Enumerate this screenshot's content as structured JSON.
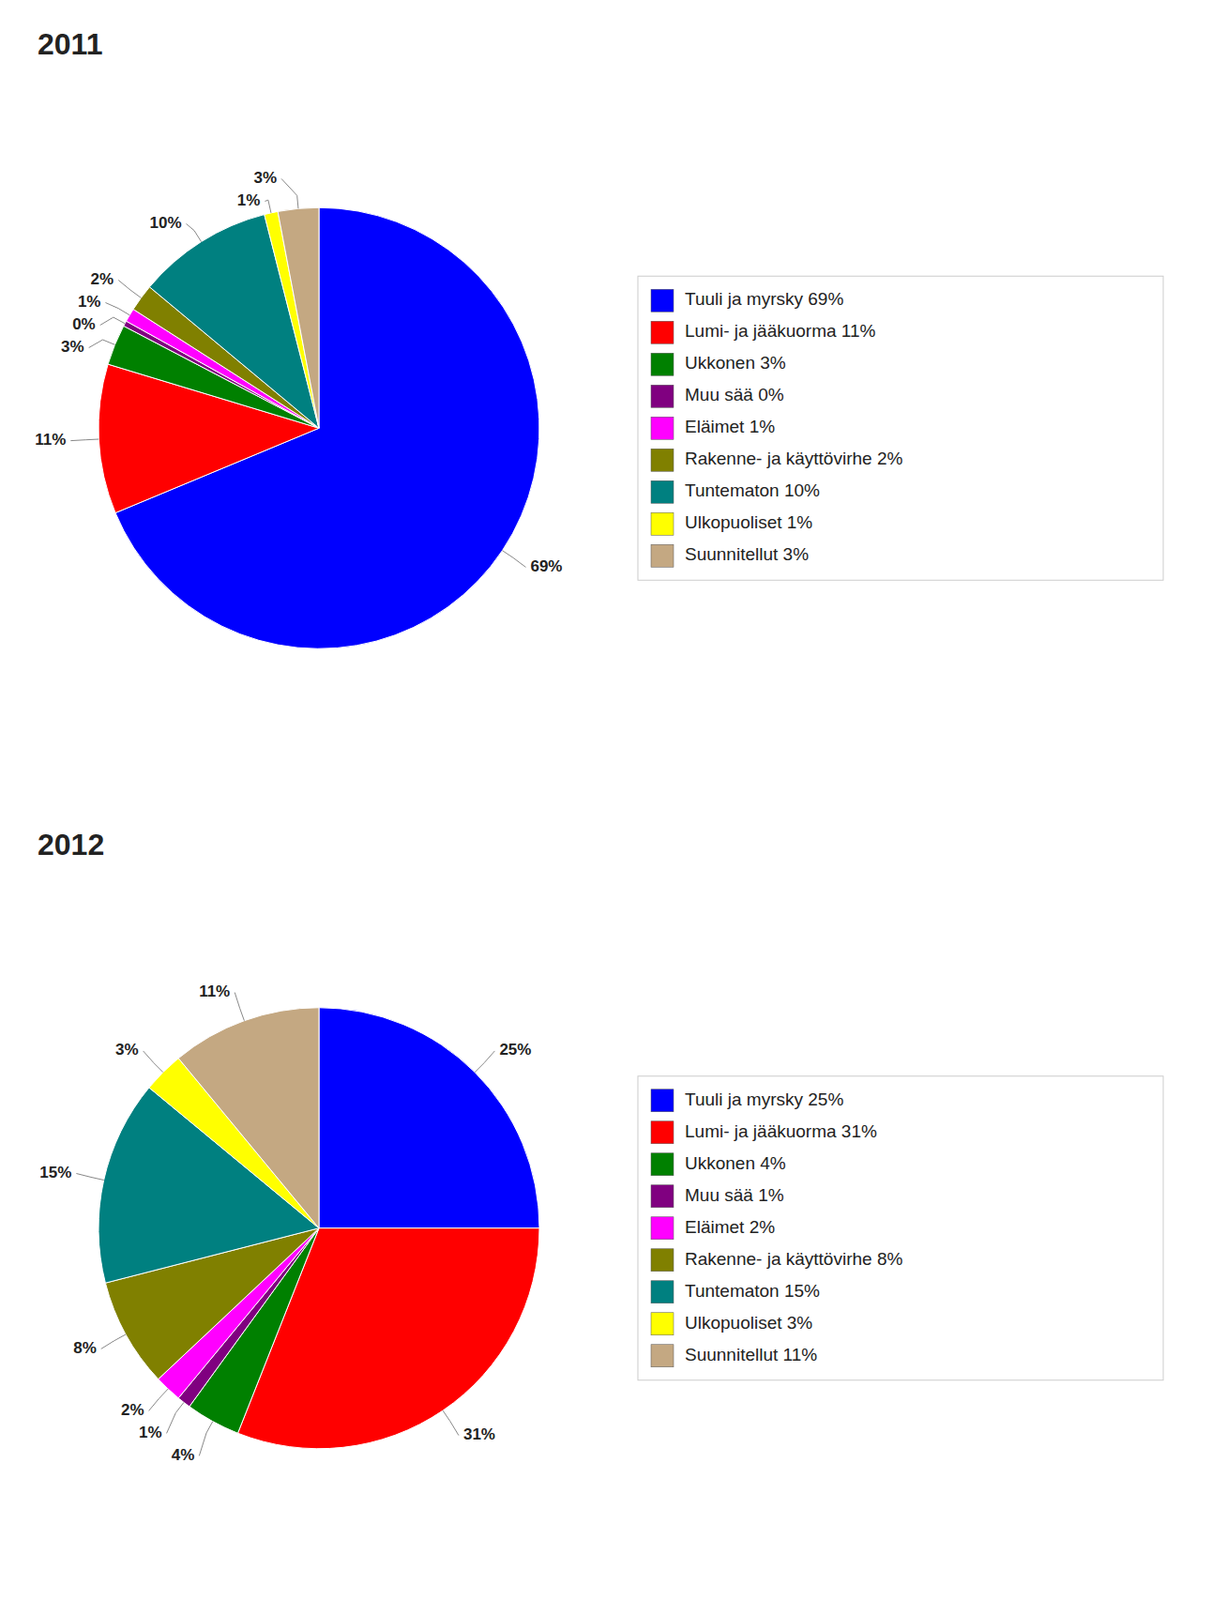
{
  "chart_data": [
    {
      "type": "pie",
      "title": "2011",
      "categories": [
        "Tuuli ja myrsky 69%",
        "Lumi- ja jääkuorma 11%",
        "Ukkonen 3%",
        "Muu sää 0%",
        "Eläimet 1%",
        "Rakenne- ja käyttövirhe 2%",
        "Tuntematon 10%",
        "Ulkopuoliset 1%",
        "Suunnitellut 3%"
      ],
      "values": [
        69,
        11,
        3,
        0.4,
        1,
        2,
        10,
        1,
        3
      ],
      "value_labels": [
        "69%",
        "11%",
        "3%",
        "0%",
        "1%",
        "2%",
        "10%",
        "1%",
        "3%"
      ],
      "colors": [
        "#0000FF",
        "#FF0000",
        "#008000",
        "#800080",
        "#FF00FF",
        "#808000",
        "#008080",
        "#FFFF00",
        "#C4A882"
      ],
      "data_labels": true,
      "legend": "right"
    },
    {
      "type": "pie",
      "title": "2012",
      "categories": [
        "Tuuli ja myrsky 25%",
        "Lumi- ja jääkuorma 31%",
        "Ukkonen 4%",
        "Muu sää 1%",
        "Eläimet 2%",
        "Rakenne- ja käyttövirhe 8%",
        "Tuntematon 15%",
        "Ulkopuoliset 3%",
        "Suunnitellut 11%"
      ],
      "values": [
        25,
        31,
        4,
        1,
        2,
        8,
        15,
        3,
        11
      ],
      "value_labels": [
        "25%",
        "31%",
        "4%",
        "1%",
        "2%",
        "8%",
        "15%",
        "3%",
        "11%"
      ],
      "colors": [
        "#0000FF",
        "#FF0000",
        "#008000",
        "#800080",
        "#FF00FF",
        "#808000",
        "#008080",
        "#FFFF00",
        "#C4A882"
      ],
      "data_labels": true,
      "legend": "right"
    }
  ]
}
